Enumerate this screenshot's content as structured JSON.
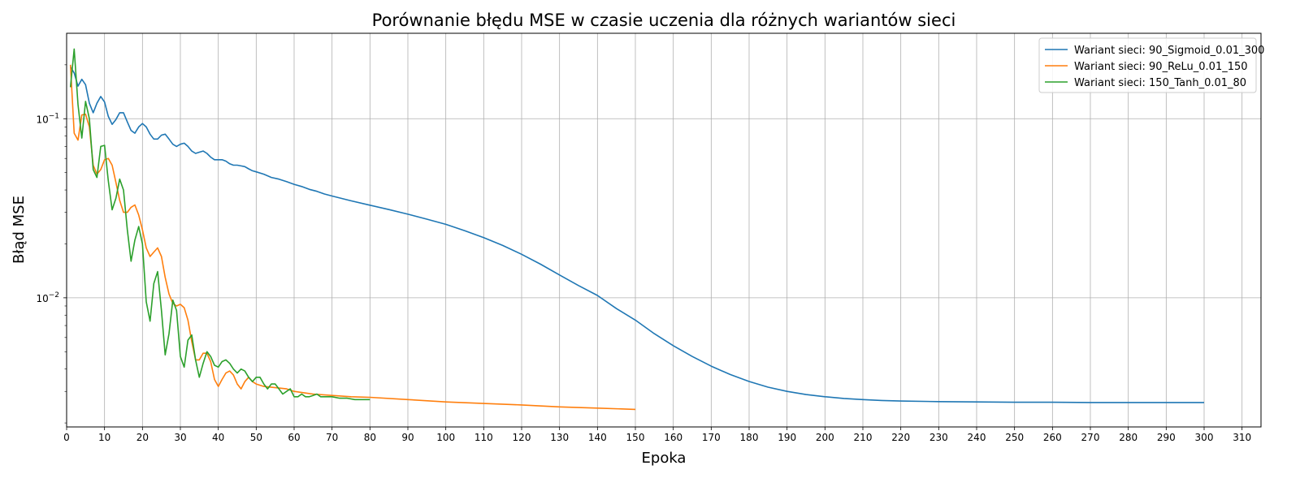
{
  "chart_data": {
    "type": "line",
    "title": "Porównanie błędu MSE w czasie uczenia dla różnych wariantów sieci",
    "xlabel": "Epoka",
    "ylabel": "Błąd MSE",
    "xlim": [
      0,
      315
    ],
    "ylim": [
      0.0019,
      0.3
    ],
    "yscale": "log",
    "grid": true,
    "legend_position": "top-right",
    "x_ticks": [
      0,
      10,
      20,
      30,
      40,
      50,
      60,
      70,
      80,
      90,
      100,
      110,
      120,
      130,
      140,
      150,
      160,
      170,
      180,
      190,
      200,
      210,
      220,
      230,
      240,
      250,
      260,
      270,
      280,
      290,
      300,
      310
    ],
    "y_ticks": [
      {
        "value": 0.01,
        "base": "10",
        "exp": "−2"
      },
      {
        "value": 0.1,
        "base": "10",
        "exp": "−1"
      }
    ],
    "series": [
      {
        "name": "Wariant sieci: 90_Sigmoid_0.01_300",
        "color": "#1f77b4",
        "points": [
          [
            1,
            0.195
          ],
          [
            2,
            0.18
          ],
          [
            3,
            0.152
          ],
          [
            4,
            0.166
          ],
          [
            5,
            0.155
          ],
          [
            6,
            0.122
          ],
          [
            7,
            0.108
          ],
          [
            8,
            0.122
          ],
          [
            9,
            0.133
          ],
          [
            10,
            0.124
          ],
          [
            11,
            0.103
          ],
          [
            12,
            0.093
          ],
          [
            13,
            0.099
          ],
          [
            14,
            0.108
          ],
          [
            15,
            0.108
          ],
          [
            16,
            0.096
          ],
          [
            17,
            0.086
          ],
          [
            18,
            0.083
          ],
          [
            19,
            0.09
          ],
          [
            20,
            0.094
          ],
          [
            21,
            0.09
          ],
          [
            22,
            0.082
          ],
          [
            23,
            0.077
          ],
          [
            24,
            0.077
          ],
          [
            25,
            0.081
          ],
          [
            26,
            0.082
          ],
          [
            27,
            0.077
          ],
          [
            28,
            0.072
          ],
          [
            29,
            0.07
          ],
          [
            30,
            0.072
          ],
          [
            31,
            0.073
          ],
          [
            32,
            0.07
          ],
          [
            33,
            0.066
          ],
          [
            34,
            0.064
          ],
          [
            35,
            0.065
          ],
          [
            36,
            0.066
          ],
          [
            37,
            0.064
          ],
          [
            38,
            0.061
          ],
          [
            39,
            0.059
          ],
          [
            40,
            0.059
          ],
          [
            41,
            0.059
          ],
          [
            42,
            0.058
          ],
          [
            43,
            0.056
          ],
          [
            44,
            0.055
          ],
          [
            45,
            0.055
          ],
          [
            46,
            0.0545
          ],
          [
            47,
            0.054
          ],
          [
            48,
            0.0525
          ],
          [
            49,
            0.0512
          ],
          [
            50,
            0.0505
          ],
          [
            52,
            0.049
          ],
          [
            54,
            0.047
          ],
          [
            56,
            0.046
          ],
          [
            58,
            0.0445
          ],
          [
            60,
            0.043
          ],
          [
            62,
            0.0418
          ],
          [
            64,
            0.0403
          ],
          [
            66,
            0.0393
          ],
          [
            68,
            0.038
          ],
          [
            70,
            0.037
          ],
          [
            75,
            0.0348
          ],
          [
            80,
            0.0329
          ],
          [
            85,
            0.0311
          ],
          [
            90,
            0.0293
          ],
          [
            95,
            0.0275
          ],
          [
            100,
            0.0257
          ],
          [
            105,
            0.0237
          ],
          [
            110,
            0.0217
          ],
          [
            115,
            0.0196
          ],
          [
            120,
            0.0175
          ],
          [
            125,
            0.0154
          ],
          [
            130,
            0.0134
          ],
          [
            135,
            0.0117
          ],
          [
            140,
            0.0103
          ],
          [
            145,
            0.0087
          ],
          [
            150,
            0.0075
          ],
          [
            155,
            0.0063
          ],
          [
            160,
            0.0054
          ],
          [
            165,
            0.0047
          ],
          [
            170,
            0.00415
          ],
          [
            175,
            0.00373
          ],
          [
            180,
            0.00341
          ],
          [
            185,
            0.00317
          ],
          [
            190,
            0.003
          ],
          [
            195,
            0.00288
          ],
          [
            200,
            0.0028
          ],
          [
            205,
            0.00274
          ],
          [
            210,
            0.0027
          ],
          [
            215,
            0.00267
          ],
          [
            220,
            0.00265
          ],
          [
            230,
            0.00263
          ],
          [
            240,
            0.00262
          ],
          [
            250,
            0.00261
          ],
          [
            260,
            0.00261
          ],
          [
            270,
            0.0026
          ],
          [
            280,
            0.0026
          ],
          [
            290,
            0.0026
          ],
          [
            300,
            0.0026
          ]
        ]
      },
      {
        "name": "Wariant sieci: 90_ReLu_0.01_150",
        "color": "#ff7f0e",
        "points": [
          [
            1,
            0.2
          ],
          [
            2,
            0.083
          ],
          [
            3,
            0.076
          ],
          [
            4,
            0.105
          ],
          [
            5,
            0.106
          ],
          [
            6,
            0.09
          ],
          [
            7,
            0.055
          ],
          [
            8,
            0.049
          ],
          [
            9,
            0.052
          ],
          [
            10,
            0.059
          ],
          [
            11,
            0.06
          ],
          [
            12,
            0.055
          ],
          [
            13,
            0.044
          ],
          [
            14,
            0.035
          ],
          [
            15,
            0.03
          ],
          [
            16,
            0.03
          ],
          [
            17,
            0.032
          ],
          [
            18,
            0.033
          ],
          [
            19,
            0.029
          ],
          [
            20,
            0.024
          ],
          [
            21,
            0.019
          ],
          [
            22,
            0.017
          ],
          [
            23,
            0.018
          ],
          [
            24,
            0.019
          ],
          [
            25,
            0.017
          ],
          [
            26,
            0.013
          ],
          [
            27,
            0.0105
          ],
          [
            28,
            0.0093
          ],
          [
            29,
            0.009
          ],
          [
            30,
            0.0092
          ],
          [
            31,
            0.0088
          ],
          [
            32,
            0.0075
          ],
          [
            33,
            0.0057
          ],
          [
            34,
            0.0045
          ],
          [
            35,
            0.0045
          ],
          [
            36,
            0.0049
          ],
          [
            37,
            0.0049
          ],
          [
            38,
            0.0044
          ],
          [
            39,
            0.0035
          ],
          [
            40,
            0.0032
          ],
          [
            41,
            0.0035
          ],
          [
            42,
            0.0038
          ],
          [
            43,
            0.0039
          ],
          [
            44,
            0.0037
          ],
          [
            45,
            0.0033
          ],
          [
            46,
            0.0031
          ],
          [
            47,
            0.0034
          ],
          [
            48,
            0.0036
          ],
          [
            49,
            0.0034
          ],
          [
            50,
            0.0033
          ],
          [
            52,
            0.0032
          ],
          [
            55,
            0.00315
          ],
          [
            58,
            0.0031
          ],
          [
            60,
            0.003
          ],
          [
            65,
            0.0029
          ],
          [
            70,
            0.00285
          ],
          [
            75,
            0.0028
          ],
          [
            80,
            0.00278
          ],
          [
            90,
            0.0027
          ],
          [
            100,
            0.00262
          ],
          [
            110,
            0.00257
          ],
          [
            120,
            0.00252
          ],
          [
            130,
            0.00246
          ],
          [
            140,
            0.00242
          ],
          [
            150,
            0.00238
          ]
        ]
      },
      {
        "name": "Wariant sieci: 150_Tanh_0.01_80",
        "color": "#2ca02c",
        "points": [
          [
            1,
            0.15
          ],
          [
            2,
            0.245
          ],
          [
            3,
            0.12
          ],
          [
            4,
            0.078
          ],
          [
            5,
            0.125
          ],
          [
            6,
            0.1
          ],
          [
            7,
            0.052
          ],
          [
            8,
            0.047
          ],
          [
            9,
            0.07
          ],
          [
            10,
            0.071
          ],
          [
            11,
            0.045
          ],
          [
            12,
            0.031
          ],
          [
            13,
            0.036
          ],
          [
            14,
            0.046
          ],
          [
            15,
            0.04
          ],
          [
            16,
            0.024
          ],
          [
            17,
            0.016
          ],
          [
            18,
            0.021
          ],
          [
            19,
            0.025
          ],
          [
            20,
            0.02
          ],
          [
            21,
            0.0095
          ],
          [
            22,
            0.0074
          ],
          [
            23,
            0.012
          ],
          [
            24,
            0.014
          ],
          [
            25,
            0.0085
          ],
          [
            26,
            0.0048
          ],
          [
            27,
            0.0063
          ],
          [
            28,
            0.0097
          ],
          [
            29,
            0.0085
          ],
          [
            30,
            0.0047
          ],
          [
            31,
            0.0041
          ],
          [
            32,
            0.0058
          ],
          [
            33,
            0.0062
          ],
          [
            34,
            0.0045
          ],
          [
            35,
            0.0036
          ],
          [
            36,
            0.0043
          ],
          [
            37,
            0.005
          ],
          [
            38,
            0.0047
          ],
          [
            39,
            0.0042
          ],
          [
            40,
            0.0041
          ],
          [
            41,
            0.0044
          ],
          [
            42,
            0.0045
          ],
          [
            43,
            0.0043
          ],
          [
            44,
            0.004
          ],
          [
            45,
            0.0038
          ],
          [
            46,
            0.004
          ],
          [
            47,
            0.0039
          ],
          [
            48,
            0.0036
          ],
          [
            49,
            0.0034
          ],
          [
            50,
            0.0036
          ],
          [
            51,
            0.0036
          ],
          [
            52,
            0.0033
          ],
          [
            53,
            0.0031
          ],
          [
            54,
            0.0033
          ],
          [
            55,
            0.0033
          ],
          [
            56,
            0.0031
          ],
          [
            57,
            0.0029
          ],
          [
            58,
            0.003
          ],
          [
            59,
            0.0031
          ],
          [
            60,
            0.0028
          ],
          [
            61,
            0.0028
          ],
          [
            62,
            0.0029
          ],
          [
            63,
            0.0028
          ],
          [
            64,
            0.0028
          ],
          [
            65,
            0.00285
          ],
          [
            66,
            0.0029
          ],
          [
            67,
            0.0028
          ],
          [
            68,
            0.0028
          ],
          [
            70,
            0.0028
          ],
          [
            72,
            0.00275
          ],
          [
            74,
            0.00275
          ],
          [
            76,
            0.0027
          ],
          [
            78,
            0.0027
          ],
          [
            80,
            0.0027
          ]
        ]
      }
    ]
  }
}
